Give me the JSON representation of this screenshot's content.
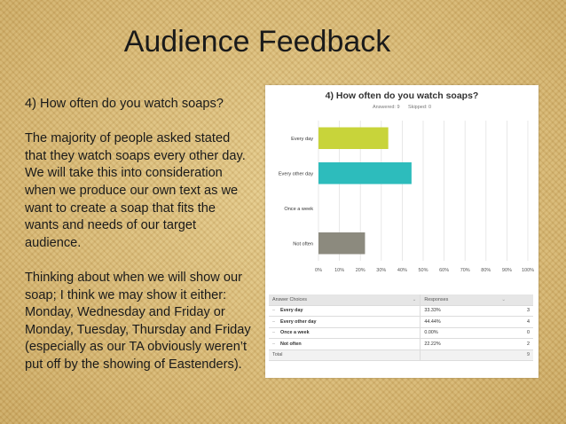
{
  "slide": {
    "title": "Audience Feedback",
    "paragraphs": [
      "4) How often do you watch soaps?",
      "The majority of people asked stated that they watch soaps every other day. We will take this into consideration when we produce our own text as we want to create a soap that fits the wants and needs of our target audience.",
      "Thinking about when we will show our soap; I think we may show it either: Monday, Wednesday and Friday or Monday, Tuesday, Thursday and Friday (especially as our TA obviously weren’t put off by the showing of Eastenders)."
    ]
  },
  "survey": {
    "question": "4) How often do you watch soaps?",
    "answered": "Answered: 9",
    "skipped": "Skipped: 0",
    "table": {
      "headers": [
        "Answer Choices",
        "Responses",
        ""
      ],
      "rows": [
        {
          "choice": "Every day",
          "percent": "33.33%",
          "count": "3"
        },
        {
          "choice": "Every other day",
          "percent": "44.44%",
          "count": "4"
        },
        {
          "choice": "Once a week",
          "percent": "0.00%",
          "count": "0"
        },
        {
          "choice": "Not often",
          "percent": "22.22%",
          "count": "2"
        }
      ],
      "total_label": "Total",
      "total_count": "9"
    }
  },
  "chart_data": {
    "type": "bar",
    "orientation": "horizontal",
    "title": "4) How often do you watch soaps?",
    "categories": [
      "Every day",
      "Every other day",
      "Once a week",
      "Not often"
    ],
    "values": [
      33.33,
      44.44,
      0,
      22.22
    ],
    "colors": [
      "#c8d43a",
      "#2dbcbc",
      "#e8a33c",
      "#8c8a7e"
    ],
    "xlim": [
      0,
      100
    ],
    "xticks": [
      "0%",
      "10%",
      "20%",
      "30%",
      "40%",
      "50%",
      "60%",
      "70%",
      "80%",
      "90%",
      "100%"
    ],
    "grid": true,
    "unit": "%"
  }
}
